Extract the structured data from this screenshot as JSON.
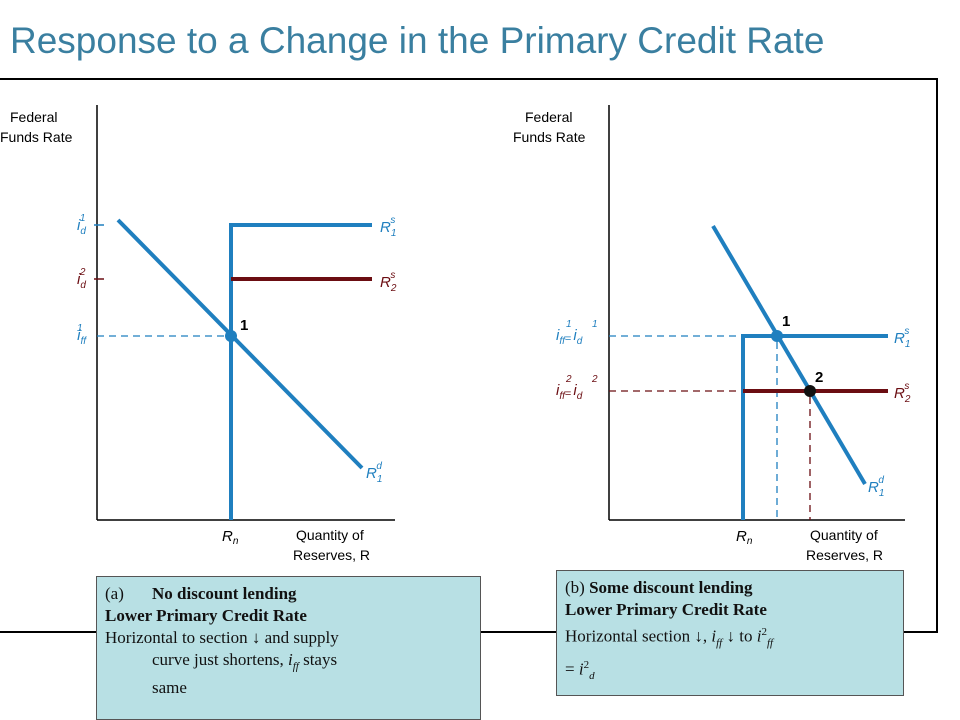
{
  "title": "Response to a Change in the Primary Credit Rate",
  "colors": {
    "title": "#3a7fa0",
    "demand_curve": "#1f7fbf",
    "supply_1": "#1f7fbf",
    "supply_2": "#6b0d12",
    "box_fill": "#b8e0e4"
  },
  "panel_a": {
    "y_axis_label_1": "Federal",
    "y_axis_label_2": "Funds Rate",
    "x_axis_label_1": "Quantity of",
    "x_axis_label_2": "Reserves, R",
    "rn_label": "R",
    "rn_sub": "n",
    "id1_label": "i",
    "id1_sub": "d",
    "id1_sup": "1",
    "id2_label": "i",
    "id2_sub": "d",
    "id2_sup": "2",
    "iff1_label": "i",
    "iff1_sub": "ff",
    "iff1_sup": "1",
    "rs1_label": "R",
    "rs1_sub": "1",
    "rs1_sup": "s",
    "rs2_label": "R",
    "rs2_sub": "2",
    "rs2_sup": "s",
    "rd1_label": "R",
    "rd1_sub": "1",
    "rd1_sup": "d",
    "point1": "1"
  },
  "panel_b": {
    "y_axis_label_1": "Federal",
    "y_axis_label_2": "Funds Rate",
    "x_axis_label_1": "Quantity of",
    "x_axis_label_2": "Reserves, R",
    "rn_label": "R",
    "rn_sub": "n",
    "eq1_a": "i",
    "eq1_a_sub": "ff",
    "eq1_a_sup": "1",
    "eq1_eq": "=",
    "eq1_b": "i",
    "eq1_b_sub": "d",
    "eq1_b_sup": "1",
    "eq2_a": "i",
    "eq2_a_sub": "ff",
    "eq2_a_sup": "2",
    "eq2_eq": "=",
    "eq2_b": "i",
    "eq2_b_sub": "d",
    "eq2_b_sup": "2",
    "rs1_label": "R",
    "rs1_sub": "1",
    "rs1_sup": "s",
    "rs2_label": "R",
    "rs2_sub": "2",
    "rs2_sup": "s",
    "rd1_label": "R",
    "rd1_sub": "1",
    "rd1_sup": "d",
    "point1": "1",
    "point2": "2"
  },
  "box_a": {
    "marker": "(a)",
    "heading": "No discount lending",
    "line2": "Lower Primary Credit Rate",
    "line3_a": "Horizontal to section ",
    "arrow": "↓",
    "line3_b": " and supply",
    "line4_a": "curve just shortens, ",
    "line4_i": "i",
    "line4_sub": "ff",
    "line4_b": " stays",
    "line5": "same"
  },
  "box_b": {
    "marker": "(b) ",
    "heading": "Some discount lending",
    "line2": "Lower Primary Credit Rate",
    "line3_a": "Horizontal section ",
    "arrow1": "↓",
    "line3_b": ", ",
    "line3_i": "i",
    "line3_sub": "ff",
    "line3_c": " ",
    "arrow2": "↓",
    "line3_d": " to ",
    "line3_i2": "i",
    "line3_sup2": "2",
    "line3_sub2": "ff",
    "line4_a": "= ",
    "line4_i": "i",
    "line4_sup": "2",
    "line4_sub": "d"
  }
}
